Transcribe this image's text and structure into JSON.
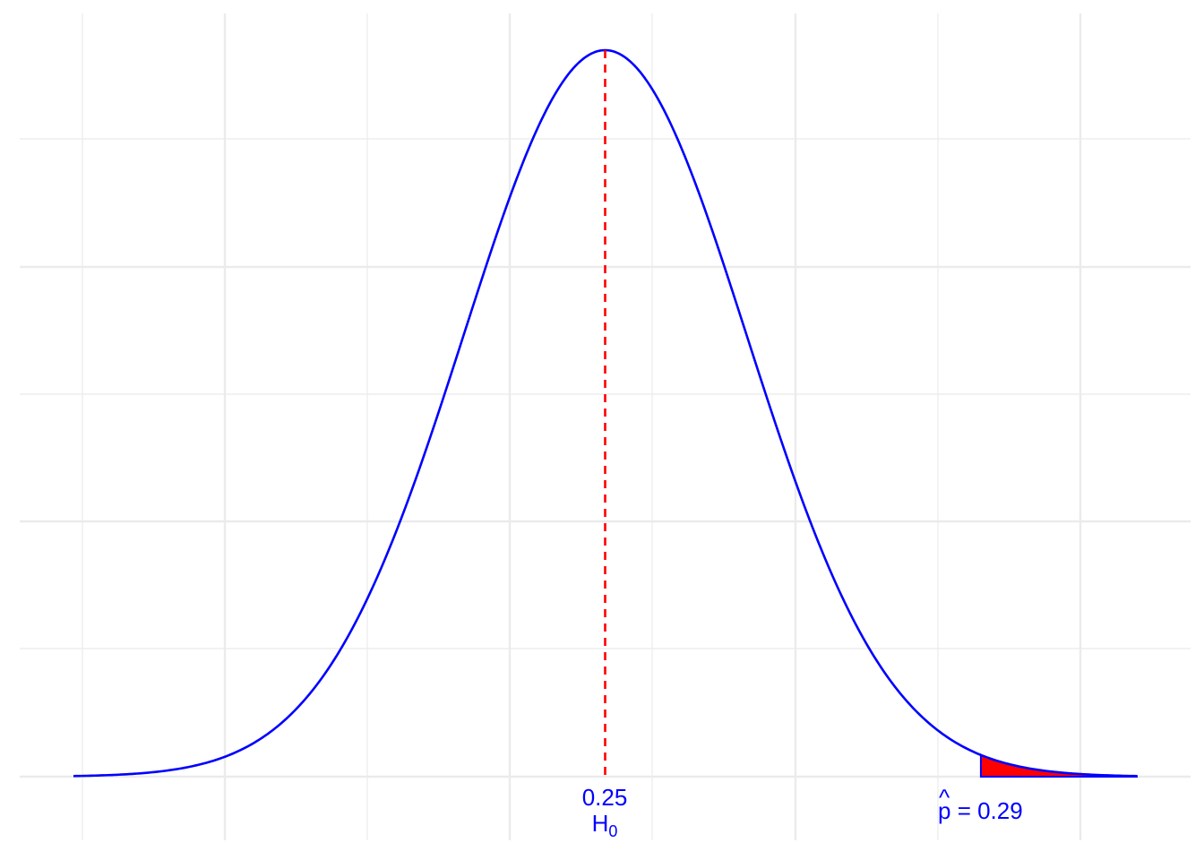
{
  "chart_data": {
    "type": "area",
    "distribution": "normal",
    "mean": 0.25,
    "sd": 0.01,
    "x_range": [
      0.2125,
      0.2875
    ],
    "shaded_region": {
      "from": 0.2765,
      "to": 0.2875,
      "color": "#ff0000",
      "tail": "right"
    },
    "grid": true,
    "colors": {
      "curve": "#0000ff",
      "mean_line": "#ff0000",
      "shade": "#ff0000",
      "labels": "#0000ff"
    },
    "annotations": {
      "h0_value": "0.25",
      "h0_label": "H",
      "h0_subscript": "0",
      "phat_hat": "^",
      "phat_symbol": "p",
      "phat_text": " = 0.29"
    }
  }
}
